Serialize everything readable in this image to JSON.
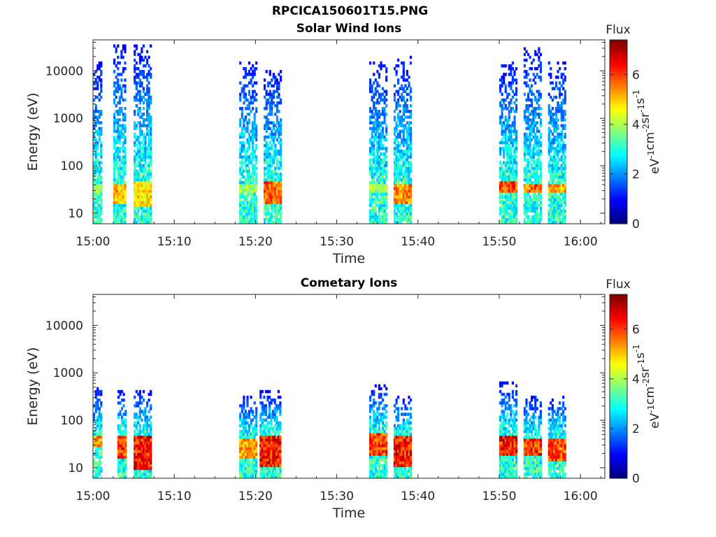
{
  "figure": {
    "title": "RPCICA150601T15.PNG"
  },
  "colorbar": {
    "label": "Flux",
    "unit_base": "eV",
    "unit_parts": [
      {
        "base": "eV",
        "exp": "-1"
      },
      {
        "base": "cm",
        "exp": "-2"
      },
      {
        "base": "sr",
        "exp": "-1"
      },
      {
        "base": "s",
        "exp": "-1"
      }
    ],
    "ticks": [
      "0",
      "2",
      "4",
      "6"
    ],
    "range": [
      0,
      7.4
    ],
    "colormap": "jet"
  },
  "chart_data": [
    {
      "type": "heatmap",
      "title": "Solar Wind Ions",
      "xlabel": "Time",
      "ylabel": "Energy (eV)",
      "x_ticks": [
        "15:00",
        "15:10",
        "15:20",
        "15:30",
        "15:40",
        "15:50",
        "16:00"
      ],
      "x_range_minutes": [
        0,
        63
      ],
      "y_scale": "log",
      "y_ticks": [
        "10",
        "100",
        "1000",
        "10000"
      ],
      "y_range": [
        6,
        45000
      ],
      "grid": false,
      "bursts": [
        {
          "t_start": "15:00",
          "t_end": "15:01",
          "peak_flux": 4.5,
          "core_energy": [
            25,
            40
          ],
          "max_energy": 15000
        },
        {
          "t_start": "15:02.5",
          "t_end": "15:04",
          "peak_flux": 5.8,
          "core_energy": [
            15,
            40
          ],
          "max_energy": 35000
        },
        {
          "t_start": "15:05",
          "t_end": "15:07",
          "peak_flux": 5.5,
          "core_energy": [
            12,
            45
          ],
          "max_energy": 35000
        },
        {
          "t_start": "15:18",
          "t_end": "15:20",
          "peak_flux": 4.5,
          "core_energy": [
            25,
            40
          ],
          "max_energy": 15000
        },
        {
          "t_start": "15:21",
          "t_end": "15:23",
          "peak_flux": 6.5,
          "core_energy": [
            15,
            45
          ],
          "max_energy": 10000
        },
        {
          "t_start": "15:34",
          "t_end": "15:36",
          "peak_flux": 4.5,
          "core_energy": [
            25,
            40
          ],
          "max_energy": 15000
        },
        {
          "t_start": "15:37",
          "t_end": "15:39",
          "peak_flux": 6.2,
          "core_energy": [
            15,
            40
          ],
          "max_energy": 20000
        },
        {
          "t_start": "15:50",
          "t_end": "15:52",
          "peak_flux": 6.8,
          "core_energy": [
            25,
            45
          ],
          "max_energy": 15000
        },
        {
          "t_start": "15:53",
          "t_end": "15:55",
          "peak_flux": 6.5,
          "core_energy": [
            25,
            40
          ],
          "max_energy": 30000
        },
        {
          "t_start": "15:56",
          "t_end": "15:58",
          "peak_flux": 6.0,
          "core_energy": [
            25,
            40
          ],
          "max_energy": 15000
        }
      ]
    },
    {
      "type": "heatmap",
      "title": "Cometary Ions",
      "xlabel": "Time",
      "ylabel": "Energy (eV)",
      "x_ticks": [
        "15:00",
        "15:10",
        "15:20",
        "15:30",
        "15:40",
        "15:50",
        "16:00"
      ],
      "x_range_minutes": [
        0,
        63
      ],
      "y_scale": "log",
      "y_ticks": [
        "10",
        "100",
        "1000",
        "10000"
      ],
      "y_range": [
        6,
        45000
      ],
      "grid": false,
      "bursts": [
        {
          "t_start": "15:00",
          "t_end": "15:01",
          "peak_flux": 6.2,
          "core_energy": [
            25,
            45
          ],
          "max_energy": 500
        },
        {
          "t_start": "15:03",
          "t_end": "15:04",
          "peak_flux": 7.0,
          "core_energy": [
            15,
            45
          ],
          "max_energy": 400
        },
        {
          "t_start": "15:05",
          "t_end": "15:07",
          "peak_flux": 7.3,
          "core_energy": [
            8,
            45
          ],
          "max_energy": 400
        },
        {
          "t_start": "15:18",
          "t_end": "15:20",
          "peak_flux": 6.0,
          "core_energy": [
            15,
            40
          ],
          "max_energy": 300
        },
        {
          "t_start": "15:20.5",
          "t_end": "15:23",
          "peak_flux": 7.2,
          "core_energy": [
            10,
            45
          ],
          "max_energy": 400
        },
        {
          "t_start": "15:34",
          "t_end": "15:36",
          "peak_flux": 6.8,
          "core_energy": [
            18,
            50
          ],
          "max_energy": 500
        },
        {
          "t_start": "15:37",
          "t_end": "15:39",
          "peak_flux": 7.3,
          "core_energy": [
            10,
            45
          ],
          "max_energy": 300
        },
        {
          "t_start": "15:50",
          "t_end": "15:52",
          "peak_flux": 7.3,
          "core_energy": [
            18,
            45
          ],
          "max_energy": 600
        },
        {
          "t_start": "15:53",
          "t_end": "15:55",
          "peak_flux": 7.0,
          "core_energy": [
            18,
            40
          ],
          "max_energy": 300
        },
        {
          "t_start": "15:56",
          "t_end": "15:58",
          "peak_flux": 6.8,
          "core_energy": [
            12,
            40
          ],
          "max_energy": 300
        }
      ]
    }
  ]
}
